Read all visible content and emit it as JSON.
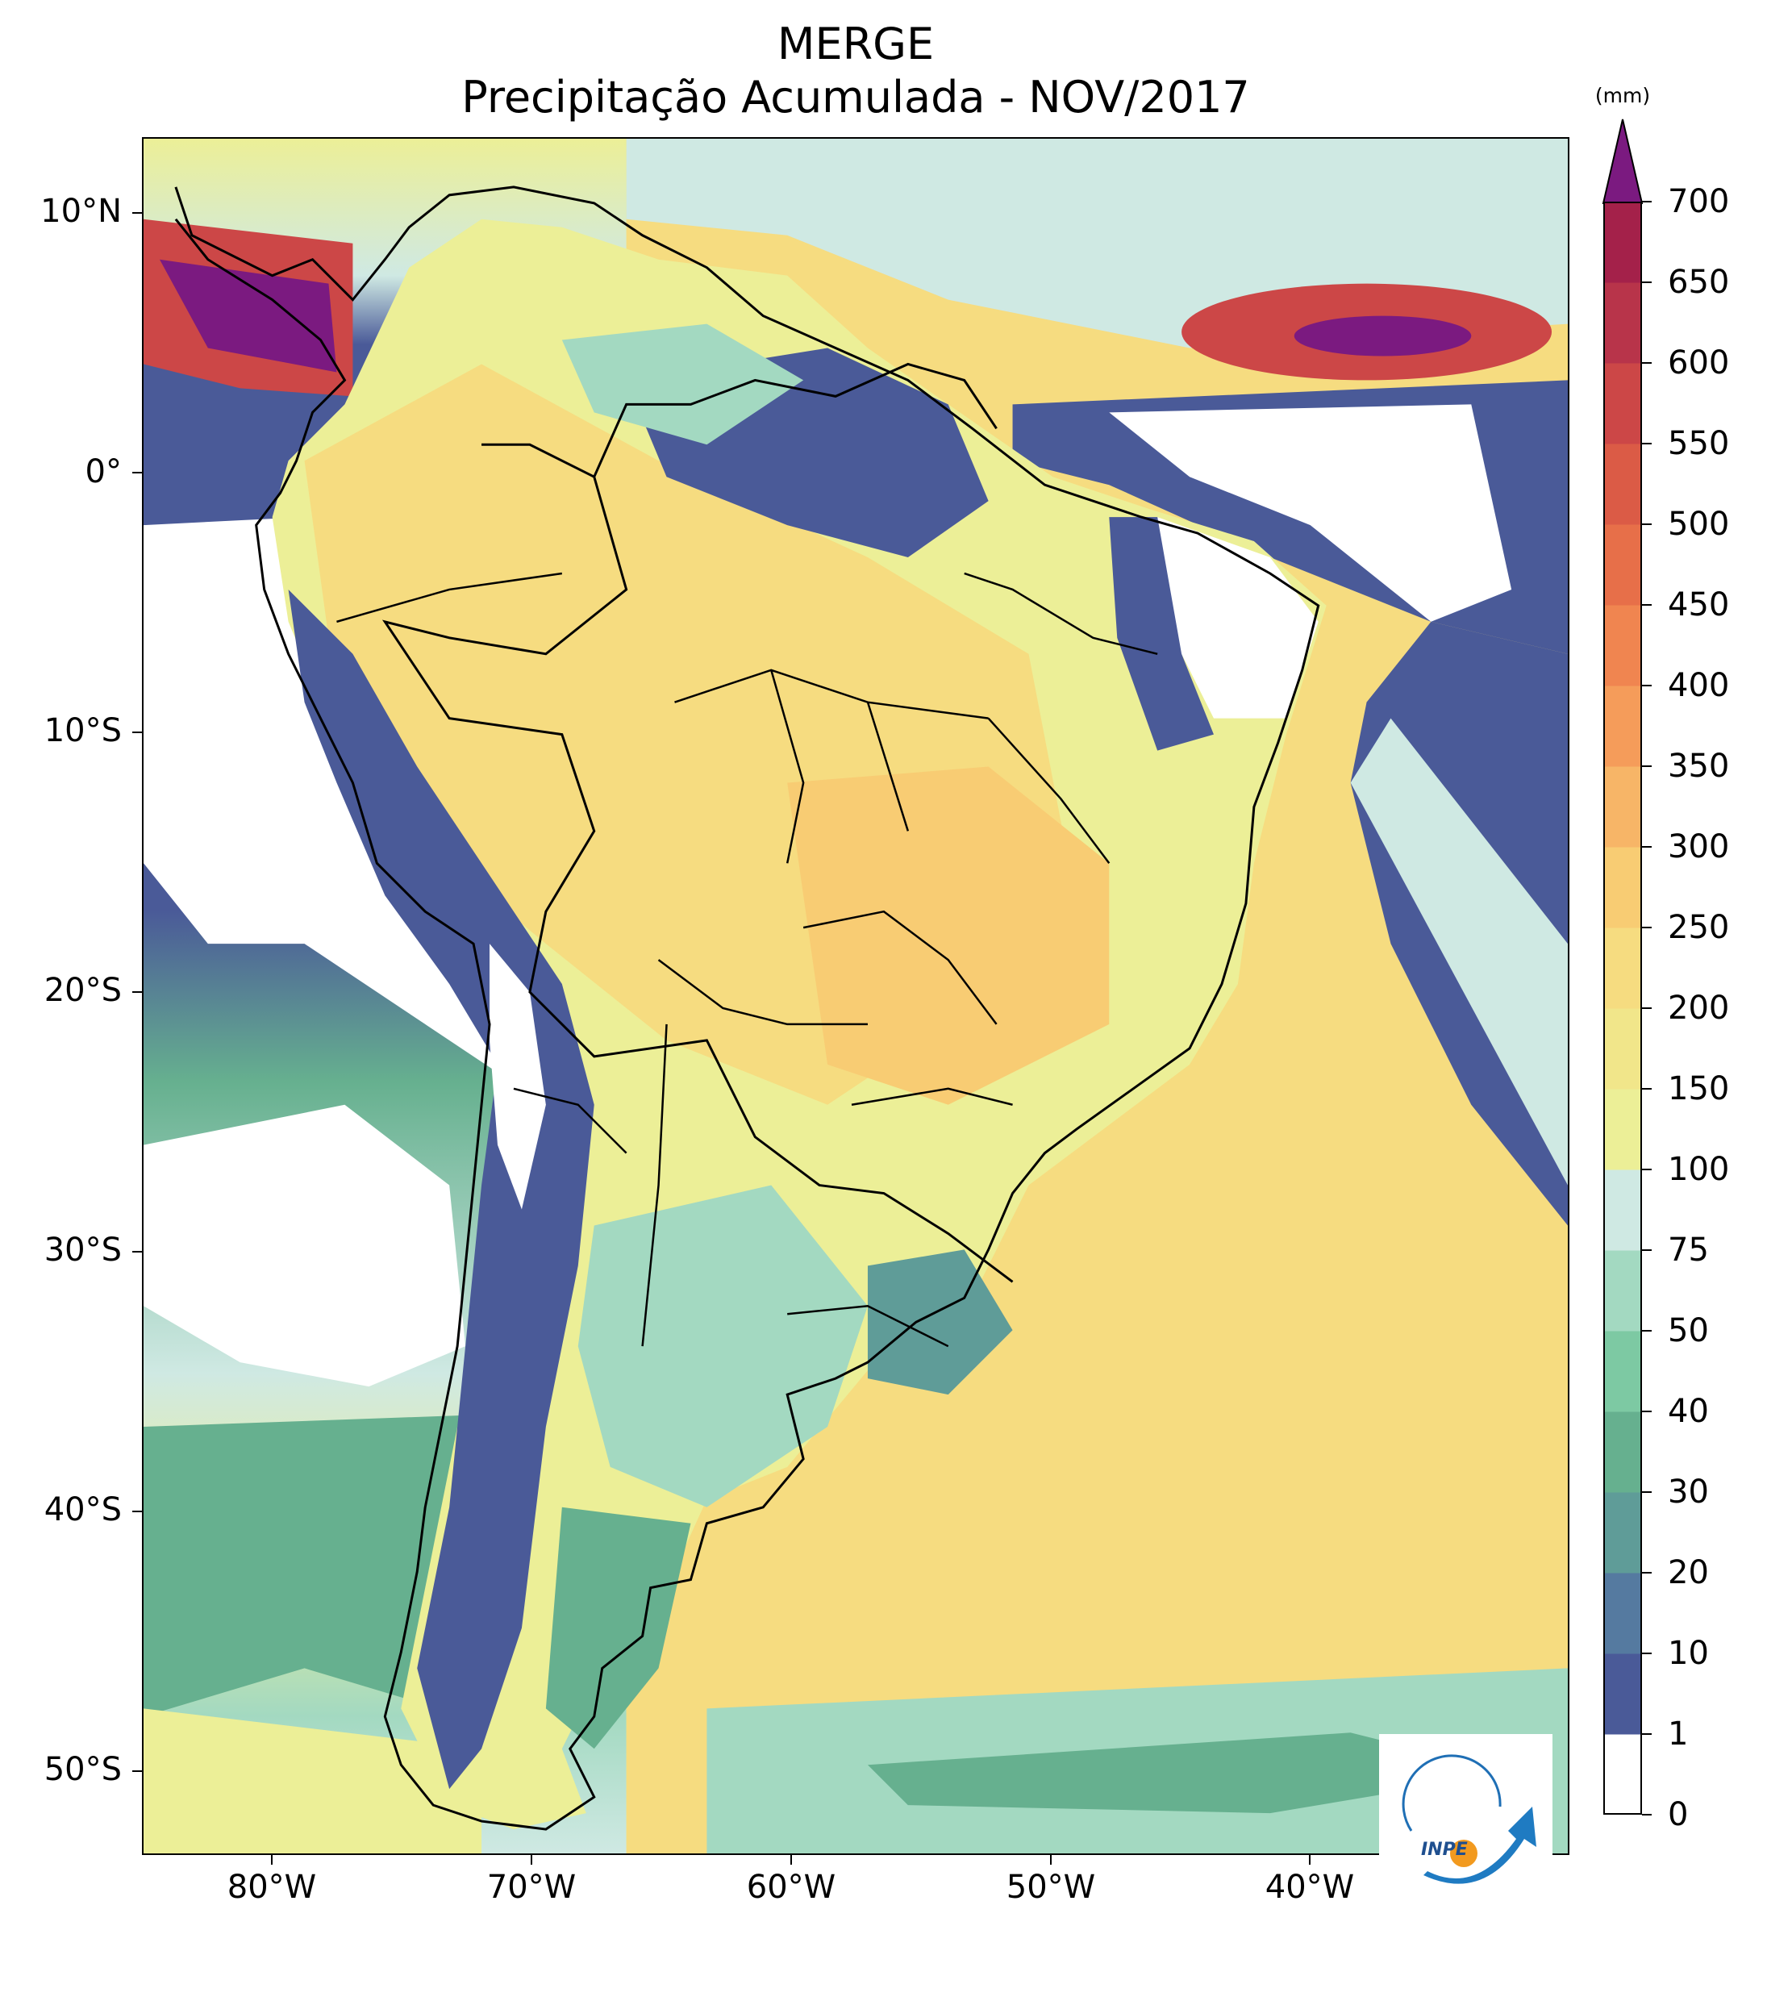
{
  "title": {
    "line1": "MERGE",
    "line2": "Precipitação Acumulada - NOV/2017"
  },
  "map": {
    "extent": {
      "lon_min": -85,
      "lon_max": -30,
      "lat_min": -56,
      "lat_max": 13
    },
    "lat_ticks": [
      {
        "value": 10,
        "label": "10°N"
      },
      {
        "value": 0,
        "label": "0°"
      },
      {
        "value": -10,
        "label": "10°S"
      },
      {
        "value": -20,
        "label": "20°S"
      },
      {
        "value": -30,
        "label": "30°S"
      },
      {
        "value": -40,
        "label": "40°S"
      },
      {
        "value": -50,
        "label": "50°S"
      }
    ],
    "lon_ticks": [
      {
        "value": -80,
        "label": "80°W"
      },
      {
        "value": -70,
        "label": "70°W"
      },
      {
        "value": -60,
        "label": "60°W"
      },
      {
        "value": -50,
        "label": "50°W"
      },
      {
        "value": -40,
        "label": "40°W"
      }
    ]
  },
  "colorbar": {
    "unit": "(mm)",
    "levels": [
      0,
      1,
      10,
      20,
      30,
      40,
      50,
      75,
      100,
      150,
      200,
      250,
      300,
      350,
      400,
      450,
      500,
      550,
      600,
      650,
      700
    ],
    "labels": [
      "0",
      "1",
      "10",
      "20",
      "30",
      "40",
      "50",
      "75",
      "100",
      "150",
      "200",
      "250",
      "300",
      "350",
      "400",
      "450",
      "500",
      "550",
      "600",
      "650",
      "700"
    ],
    "colors": [
      "#ffffff",
      "#4a5a98",
      "#557aa0",
      "#5f9c98",
      "#66b08f",
      "#7dc9a3",
      "#a3d9c1",
      "#cfe9e3",
      "#ecef97",
      "#f1e68a",
      "#f6dc80",
      "#f8cc73",
      "#f7b567",
      "#f59c5a",
      "#f08550",
      "#e76f49",
      "#db5b46",
      "#cc4747",
      "#b8344a",
      "#a4214a"
    ],
    "extend_color": "#7b1a80"
  },
  "logo": {
    "text": "INPE"
  }
}
